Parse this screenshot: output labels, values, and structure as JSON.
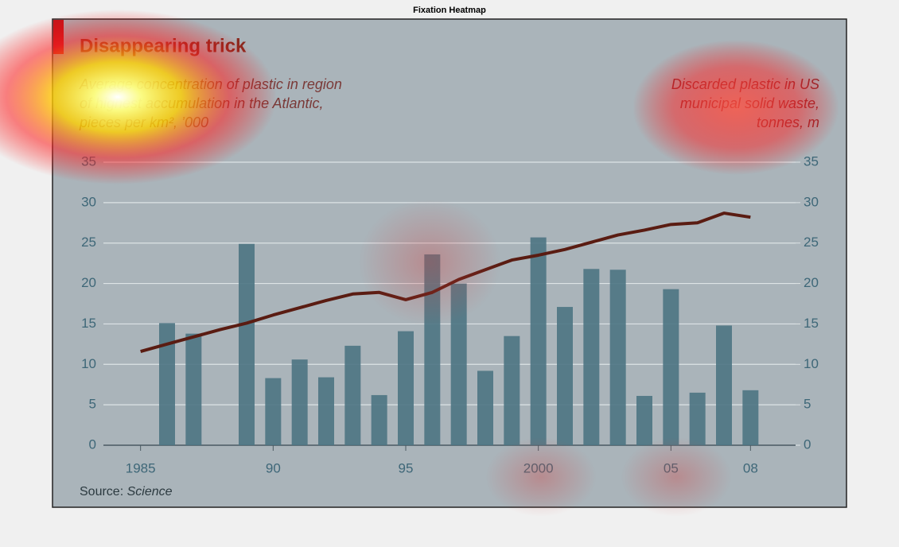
{
  "window_title": "Fixation Heatmap",
  "chart_data": {
    "type": "bar-line",
    "title": "Disappearing trick",
    "subtitle_left": [
      "Average concentration of plastic in region",
      "of highest accumulation in the Atlantic,",
      "pieces per km², ’000"
    ],
    "subtitle_right": [
      "Discarded plastic in US",
      "municipal solid waste,",
      "tonnes, m"
    ],
    "source_prefix": "Source:",
    "source": "Science",
    "x": [
      1985,
      1986,
      1987,
      1988,
      1989,
      1990,
      1991,
      1992,
      1993,
      1994,
      1995,
      1996,
      1997,
      1998,
      1999,
      2000,
      2001,
      2002,
      2003,
      2004,
      2005,
      2006,
      2007,
      2008
    ],
    "series": [
      {
        "kind": "bar",
        "color": "#4d7483",
        "values": [
          null,
          15.1,
          13.8,
          null,
          24.9,
          8.3,
          10.6,
          8.4,
          12.3,
          6.2,
          14.1,
          23.6,
          20.0,
          9.2,
          13.5,
          25.7,
          17.1,
          21.8,
          21.7,
          6.1,
          19.3,
          6.5,
          14.8,
          6.8
        ]
      },
      {
        "kind": "line",
        "axis": "y2",
        "color": "#5a1c12",
        "values": [
          11.6,
          12.5,
          13.4,
          14.3,
          15.1,
          16.1,
          17.0,
          17.9,
          18.7,
          18.9,
          18.0,
          18.9,
          20.5,
          21.7,
          22.9,
          23.5,
          24.2,
          25.1,
          26.0,
          26.6,
          27.3,
          27.5,
          28.7,
          28.2
        ]
      }
    ],
    "xlim": [
      1983.6,
      2009.7
    ],
    "xticks": [
      1985,
      {
        "value": 1990,
        "label": "90"
      },
      {
        "value": 1995,
        "label": "95"
      },
      2000,
      {
        "value": 2005,
        "label": "05"
      },
      {
        "value": 2008,
        "label": "08"
      }
    ],
    "ylim": [
      0,
      35
    ],
    "yticks": [
      0,
      5,
      10,
      15,
      20,
      25,
      30,
      35
    ],
    "y2lim": [
      0,
      35
    ],
    "y2ticks": [
      0,
      5,
      10,
      15,
      20,
      25,
      30,
      35
    ],
    "grid": true
  }
}
